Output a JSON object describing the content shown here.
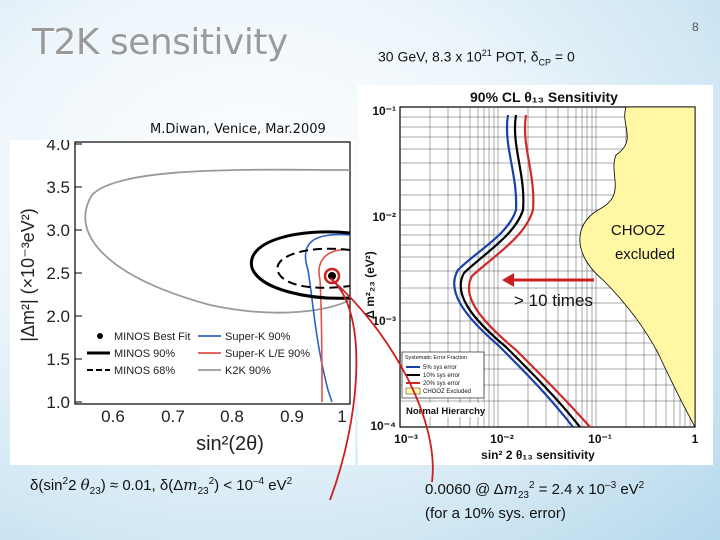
{
  "slide": {
    "title": "T2K sensitivity",
    "page_number": "8",
    "run_config_main": "30 GeV, 8.3 x 10",
    "run_config_exp": "21",
    "run_config_mid": " POT,  δ",
    "run_config_sub": "CP",
    "run_config_end": " = 0",
    "credit": "M.Diwan, Venice, Mar.2009"
  },
  "left_plot": {
    "y_axis_label": "|Δm²| (×10⁻³eV²)",
    "x_axis_label": "sin²(2θ)",
    "y_ticks": [
      "1.0",
      "1.5",
      "2.0",
      "2.5",
      "3.0",
      "3.5",
      "4.0"
    ],
    "x_ticks": [
      "0.6",
      "0.7",
      "0.8",
      "0.9",
      "1"
    ],
    "legend": [
      {
        "label": "MINOS Best Fit",
        "style": "dot",
        "color": "#000000"
      },
      {
        "label": "MINOS 90%",
        "style": "solid-thick",
        "color": "#000000"
      },
      {
        "label": "MINOS 68%",
        "style": "dashed",
        "color": "#000000"
      },
      {
        "label": "Super-K 90%",
        "style": "solid",
        "color": "#2b63c9"
      },
      {
        "label": "Super-K L/E 90%",
        "style": "solid",
        "color": "#e0524b"
      },
      {
        "label": "K2K 90%",
        "style": "solid",
        "color": "#999999"
      }
    ]
  },
  "right_plot": {
    "title": "90% CL θ₁₃ Sensitivity",
    "y_axis_label": "Δ m²₂₃ (eV²)",
    "x_axis_label": "sin² 2 θ₁₃ sensitivity",
    "y_ticks": [
      "10⁻¹",
      "10⁻²",
      "10⁻³",
      "10⁻⁴"
    ],
    "x_ticks": [
      "10⁻³",
      "10⁻²",
      "10⁻¹",
      "1"
    ],
    "legend_header": "Systematic Error Fraction",
    "legend": [
      {
        "label": "5% sys error",
        "color": "#1a3fa8"
      },
      {
        "label": "10% sys error",
        "color": "#000000"
      },
      {
        "label": "20% sys error",
        "color": "#cc2a2a"
      },
      {
        "label": "CHOOZ Excluded",
        "color": "#fff7a3"
      }
    ],
    "hierarchy_label": "Normal Hierarchy",
    "chooz_label_1": "CHOOZ",
    "chooz_label_2": "excluded",
    "arrow_label": "> 10 times"
  },
  "formulas": {
    "left_pre": "δ(sin",
    "left_exp1": "2",
    "left_mid1": "2 ",
    "left_theta": "θ",
    "left_sub1": "23",
    "left_mid2": ") ≈ 0.01, δ(Δ",
    "left_m": "m",
    "left_sub2": "23",
    "left_exp2": "2",
    "left_mid3": ") < 10",
    "left_exp3": "–4",
    "left_end": " eV",
    "left_exp4": "2",
    "right_pre": "0.0060 @ Δ",
    "right_m": "m",
    "right_sub": "23",
    "right_exp": "2",
    "right_mid": " = 2.4 x 10",
    "right_exp2": "–3",
    "right_end": " eV",
    "right_exp3": "2",
    "right_note": "(for a 10% sys. error)"
  },
  "colors": {
    "title_gray": "#9a9a9a",
    "annotation_red": "#cc1f1f",
    "chooz_yellow": "#fff7a3",
    "background_blue": "#cfe6f3"
  }
}
